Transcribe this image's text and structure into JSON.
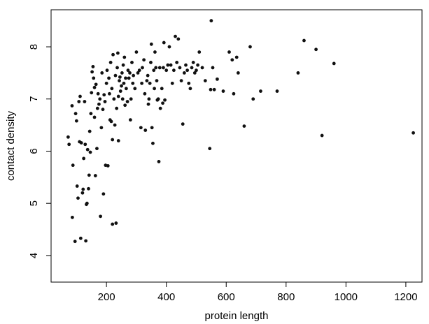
{
  "chart_data": {
    "type": "scatter",
    "x_label": "protein length",
    "y_label": "contact density",
    "xlim": [
      15,
      1254
    ],
    "ylim": [
      3.49,
      8.71
    ],
    "xticks": [
      200,
      400,
      600,
      800,
      1000,
      1200
    ],
    "yticks": [
      4,
      5,
      6,
      7,
      8
    ],
    "color": "#111111",
    "x": [
      72,
      75,
      85,
      88,
      86,
      95,
      97,
      100,
      102,
      105,
      108,
      110,
      112,
      114,
      116,
      120,
      122,
      124,
      127,
      129,
      131,
      133,
      135,
      137,
      140,
      142,
      144,
      146,
      148,
      150,
      152,
      155,
      157,
      160,
      160,
      163,
      165,
      168,
      170,
      172,
      175,
      178,
      180,
      183,
      185,
      188,
      190,
      192,
      195,
      197,
      200,
      202,
      205,
      208,
      210,
      212,
      214,
      216,
      218,
      220,
      220,
      222,
      225,
      228,
      230,
      232,
      234,
      236,
      238,
      240,
      240,
      243,
      245,
      247,
      250,
      252,
      254,
      256,
      258,
      260,
      262,
      264,
      266,
      270,
      272,
      275,
      278,
      280,
      282,
      285,
      288,
      290,
      295,
      300,
      305,
      310,
      315,
      318,
      320,
      325,
      328,
      330,
      335,
      338,
      340,
      342,
      345,
      348,
      350,
      352,
      355,
      358,
      360,
      362,
      365,
      368,
      370,
      373,
      375,
      378,
      380,
      385,
      388,
      390,
      392,
      395,
      400,
      405,
      410,
      415,
      420,
      425,
      430,
      435,
      440,
      445,
      450,
      455,
      460,
      465,
      470,
      475,
      480,
      485,
      490,
      495,
      500,
      505,
      510,
      520,
      530,
      545,
      548,
      550,
      555,
      560,
      570,
      590,
      610,
      620,
      625,
      635,
      640,
      660,
      680,
      690,
      715,
      770,
      840,
      860,
      900,
      920,
      960,
      1225
    ],
    "y": [
      6.27,
      6.13,
      6.87,
      5.73,
      4.73,
      4.27,
      6.72,
      6.58,
      5.33,
      5.1,
      6.95,
      6.18,
      7.05,
      4.33,
      6.16,
      5.2,
      5.27,
      5.86,
      6.95,
      6.13,
      4.28,
      4.98,
      5.0,
      6.03,
      5.28,
      5.54,
      6.38,
      5.98,
      6.72,
      7.12,
      7.52,
      7.62,
      7.4,
      7.22,
      6.65,
      5.53,
      7.28,
      6.05,
      6.82,
      7.1,
      6.9,
      7.0,
      4.75,
      6.45,
      7.5,
      6.8,
      5.18,
      7.08,
      6.95,
      5.73,
      7.3,
      7.55,
      5.72,
      7.4,
      7.1,
      6.6,
      7.7,
      6.57,
      7.2,
      4.6,
      6.22,
      7.85,
      7.0,
      6.5,
      7.45,
      4.62,
      6.82,
      7.6,
      7.88,
      7.05,
      6.2,
      7.35,
      7.42,
      7.15,
      7.25,
      7.5,
      7.0,
      7.65,
      7.3,
      7.8,
      6.88,
      7.4,
      7.2,
      6.95,
      7.55,
      7.4,
      7.5,
      6.6,
      7.0,
      7.7,
      7.3,
      7.45,
      7.2,
      7.9,
      7.5,
      7.55,
      6.45,
      7.3,
      7.6,
      7.75,
      7.1,
      6.4,
      7.35,
      7.45,
      6.9,
      7.0,
      7.3,
      7.7,
      8.05,
      6.45,
      6.15,
      7.55,
      7.2,
      7.9,
      7.6,
      7.35,
      6.98,
      7.0,
      5.8,
      7.6,
      6.82,
      7.2,
      6.92,
      7.6,
      8.08,
      6.98,
      7.55,
      7.65,
      8.0,
      7.65,
      7.3,
      7.55,
      8.2,
      7.7,
      8.15,
      7.6,
      7.35,
      6.52,
      7.5,
      7.65,
      7.55,
      7.3,
      7.2,
      7.6,
      7.7,
      7.5,
      7.55,
      7.65,
      7.9,
      7.6,
      7.35,
      6.05,
      7.18,
      8.5,
      7.6,
      7.18,
      7.38,
      7.15,
      7.9,
      7.75,
      7.1,
      7.8,
      7.5,
      6.48,
      8.0,
      7.0,
      7.15,
      7.15,
      7.5,
      8.12,
      7.95,
      6.3,
      7.68,
      6.35
    ]
  }
}
